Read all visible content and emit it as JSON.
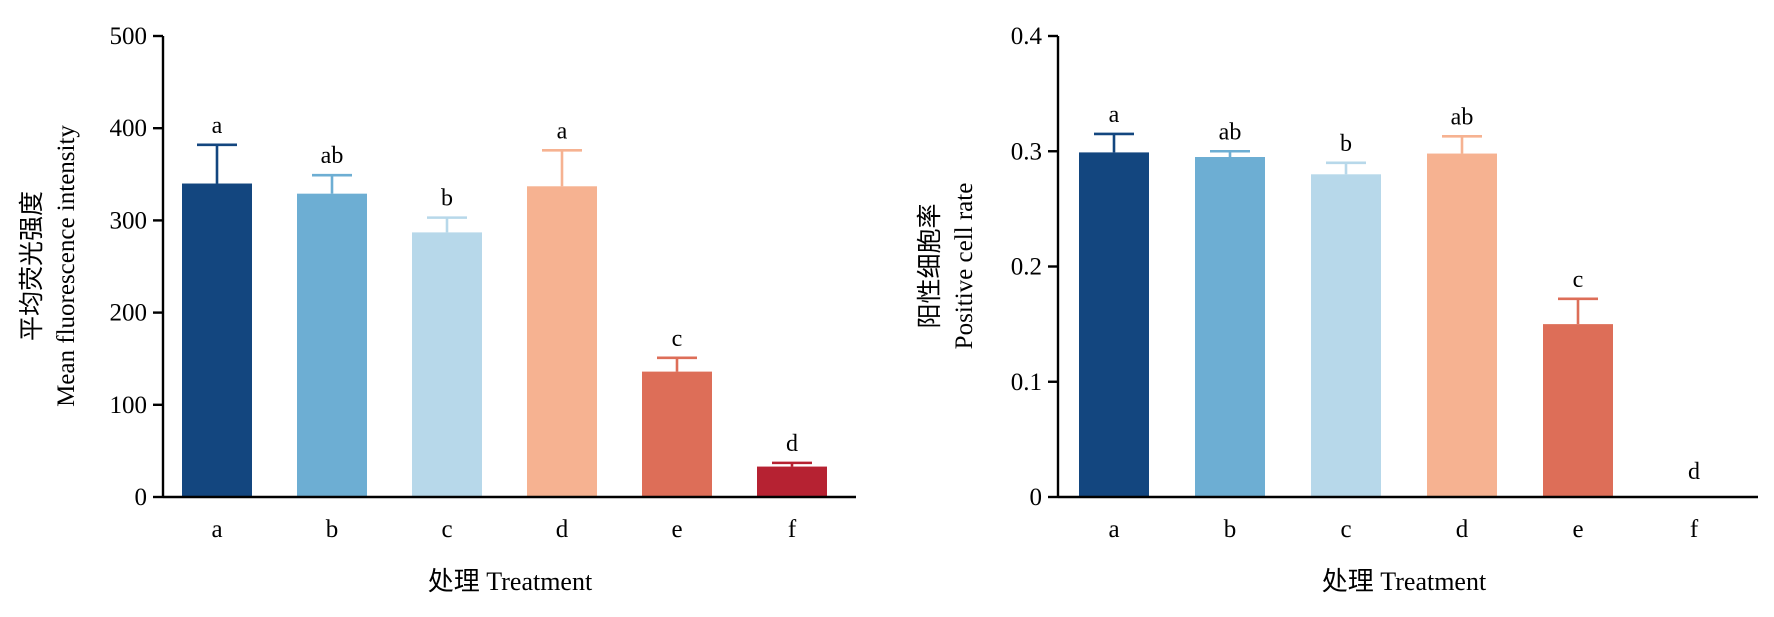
{
  "chart_data": [
    {
      "type": "bar",
      "categories": [
        "a",
        "b",
        "c",
        "d",
        "e",
        "f"
      ],
      "values": [
        340,
        329,
        287,
        337,
        136,
        33
      ],
      "errors": [
        42,
        20,
        16,
        39,
        15,
        4
      ],
      "significance": [
        "a",
        "ab",
        "b",
        "a",
        "c",
        "d"
      ],
      "colors": [
        "#13467f",
        "#6daed3",
        "#b7d8ea",
        "#f6b291",
        "#dd6e58",
        "#b62232"
      ],
      "xlabel": "处理 Treatment",
      "ylabel_cn": "平均荧光强度",
      "ylabel": "Mean fluorescence intensity",
      "ylim": [
        0,
        500
      ],
      "yticks": [
        0,
        100,
        200,
        300,
        400,
        500
      ],
      "ytick_labels": [
        "0",
        "100",
        "200",
        "300",
        "400",
        "500"
      ],
      "grid": false,
      "legend": "none"
    },
    {
      "type": "bar",
      "categories": [
        "a",
        "b",
        "c",
        "d",
        "e",
        "f"
      ],
      "values": [
        0.299,
        0.295,
        0.28,
        0.298,
        0.15,
        0
      ],
      "errors": [
        0.016,
        0.005,
        0.01,
        0.015,
        0.022,
        0
      ],
      "significance": [
        "a",
        "ab",
        "b",
        "ab",
        "c",
        "d"
      ],
      "colors": [
        "#13467f",
        "#6daed3",
        "#b7d8ea",
        "#f6b291",
        "#dd6e58",
        "#b62232"
      ],
      "xlabel": "处理 Treatment",
      "ylabel_cn": "阳性细胞率",
      "ylabel": "Positive cell rate",
      "ylim": [
        0,
        0.4
      ],
      "yticks": [
        0,
        0.1,
        0.2,
        0.3,
        0.4
      ],
      "ytick_labels": [
        "0",
        "0.1",
        "0.2",
        "0.3",
        "0.4"
      ],
      "grid": false,
      "legend": "none"
    }
  ]
}
